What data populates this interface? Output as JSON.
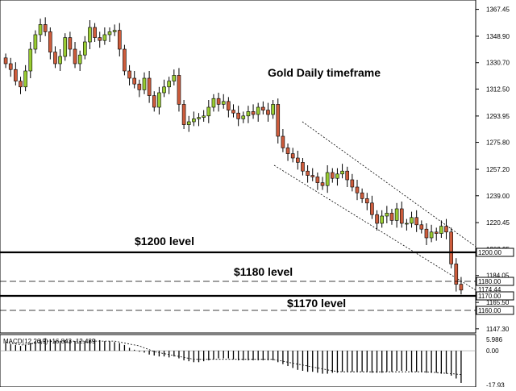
{
  "chart_data": [
    {
      "type": "candlestick",
      "title": "Gold Daily timeframe",
      "ylim": [
        1140,
        1380
      ],
      "y_ticks": [
        "1367.45",
        "1348.90",
        "1330.70",
        "1312.50",
        "1293.95",
        "1275.80",
        "1257.20",
        "1239.00",
        "1220.45",
        "1202.25",
        "1184.05",
        "1165.50",
        "1147.30"
      ],
      "price_tags": [
        {
          "label": "1200.00",
          "value": 1200.0,
          "style": "outlined"
        },
        {
          "label": "1180.00",
          "value": 1180.0,
          "style": "outlined"
        },
        {
          "label": "1174.44",
          "value": 1174.44,
          "style": "plain"
        },
        {
          "label": "1170.00",
          "value": 1170.0,
          "style": "outlined"
        },
        {
          "label": "1160.00",
          "value": 1160.0,
          "style": "outlined"
        }
      ],
      "levels": [
        {
          "value": 1200,
          "style": "solid",
          "label": "$1200 level"
        },
        {
          "value": 1180,
          "style": "dashed",
          "label": "$1180 level"
        },
        {
          "value": 1170,
          "style": "solid",
          "label": "$1170 level"
        },
        {
          "value": 1160,
          "style": "dashed",
          "label": ""
        }
      ],
      "candles_close": [
        1330,
        1326,
        1318,
        1314,
        1325,
        1340,
        1350,
        1357,
        1352,
        1338,
        1330,
        1335,
        1348,
        1340,
        1330,
        1336,
        1345,
        1355,
        1348,
        1346,
        1350,
        1352,
        1353,
        1340,
        1325,
        1320,
        1316,
        1312,
        1320,
        1308,
        1300,
        1310,
        1314,
        1318,
        1322,
        1302,
        1288,
        1290,
        1292,
        1293,
        1294,
        1300,
        1306,
        1302,
        1304,
        1298,
        1296,
        1292,
        1294,
        1297,
        1295,
        1300,
        1298,
        1295,
        1302,
        1280,
        1272,
        1268,
        1265,
        1262,
        1256,
        1253,
        1252,
        1248,
        1246,
        1255,
        1251,
        1254,
        1256,
        1250,
        1245,
        1241,
        1237,
        1234,
        1226,
        1220,
        1225,
        1227,
        1222,
        1230,
        1220,
        1220,
        1224,
        1219,
        1216,
        1210,
        1214,
        1213,
        1218,
        1214,
        1192,
        1178,
        1174
      ],
      "trend_channel": [
        {
          "start": 1290,
          "end": 1204,
          "style": "dotted"
        },
        {
          "start": 1260,
          "end": 1174,
          "style": "dotted"
        }
      ]
    },
    {
      "type": "histogram",
      "title": "MACD(12,26,9) -16.843 -12.489",
      "indicator_label": "MACD(12,26,9)",
      "macd_value": "-16.843",
      "signal_value": "-12.489",
      "y_ticks": [
        "5.986",
        "0.00",
        "-17.93"
      ],
      "ylim": [
        -18.5,
        8
      ],
      "values": [
        4,
        3.5,
        3,
        2.5,
        3,
        4,
        5,
        6,
        6.5,
        6,
        5,
        5,
        5.5,
        5.5,
        5,
        5,
        5,
        5.5,
        6,
        5.5,
        5,
        5,
        4.5,
        4,
        3,
        1.5,
        0.5,
        -0.5,
        -1,
        -2,
        -2.5,
        -3,
        -3,
        -3.5,
        -3,
        -4,
        -5,
        -5.5,
        -6,
        -6,
        -5.5,
        -5,
        -4.5,
        -4,
        -4,
        -4,
        -4.5,
        -5,
        -5,
        -5,
        -5,
        -5,
        -5,
        -5,
        -5,
        -6,
        -7,
        -8,
        -9,
        -10,
        -10.5,
        -11,
        -11,
        -11.5,
        -12,
        -12,
        -11.5,
        -11.5,
        -11,
        -11,
        -11,
        -11,
        -11,
        -11,
        -11.5,
        -11.5,
        -11.5,
        -11,
        -11,
        -10.5,
        -10.5,
        -10.5,
        -11,
        -11,
        -11,
        -11.5,
        -11.5,
        -11.5,
        -12,
        -12,
        -13,
        -14.5,
        -16.8
      ],
      "signal": [
        4.5,
        4,
        3.5,
        3,
        3,
        3.5,
        4,
        4.5,
        5,
        5,
        5,
        5,
        5,
        5,
        5,
        5,
        5,
        5,
        5,
        5,
        5,
        5,
        5,
        4.5,
        4,
        3.5,
        3,
        2.5,
        1.5,
        0.5,
        -0.5,
        -1,
        -1.5,
        -2,
        -2.5,
        -3,
        -3.5,
        -4,
        -4.5,
        -4.5,
        -4.5,
        -4.5,
        -4.5,
        -4.5,
        -4.5,
        -4.5,
        -4.5,
        -4.5,
        -4.5,
        -4.5,
        -4.5,
        -4.5,
        -4.5,
        -4.5,
        -4.5,
        -5,
        -5.5,
        -6,
        -6.5,
        -7,
        -7.5,
        -8,
        -8.5,
        -9,
        -9.5,
        -10,
        -10.5,
        -10.8,
        -11,
        -11,
        -11,
        -11,
        -11,
        -11,
        -11,
        -11,
        -11,
        -11,
        -11,
        -11,
        -11,
        -11,
        -11,
        -11,
        -11,
        -11,
        -11.2,
        -11.4,
        -11.6,
        -11.8,
        -12,
        -12.2,
        -12.5
      ]
    }
  ],
  "colors": {
    "bull": "#9acd32",
    "bear": "#cd5c3c",
    "line": "#000000",
    "background": "#ffffff"
  }
}
